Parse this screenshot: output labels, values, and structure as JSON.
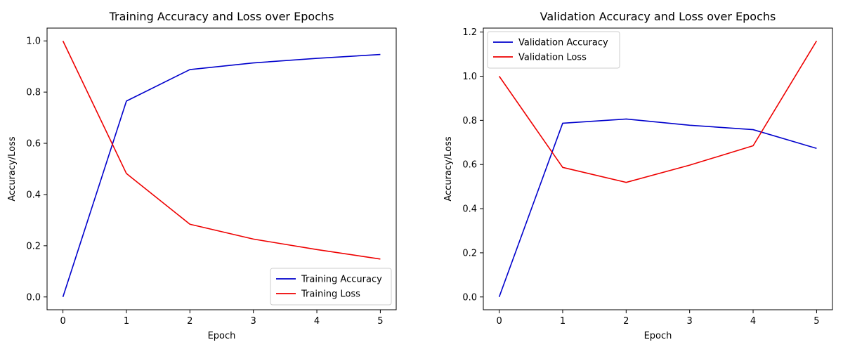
{
  "chart_data": [
    {
      "type": "line",
      "title": "Training Accuracy and Loss over Epochs",
      "xlabel": "Epoch",
      "ylabel": "Accuracy/Loss",
      "x": [
        0,
        1,
        2,
        3,
        4,
        5
      ],
      "xlim": [
        -0.25,
        5.25
      ],
      "ylim": [
        -0.05,
        1.05
      ],
      "xticks": [
        0,
        1,
        2,
        3,
        4,
        5
      ],
      "yticks": [
        0.0,
        0.2,
        0.4,
        0.6,
        0.8,
        1.0
      ],
      "ytick_labels": [
        "0.0",
        "0.2",
        "0.4",
        "0.6",
        "0.8",
        "1.0"
      ],
      "grid": false,
      "legend_position": "lower-right",
      "series": [
        {
          "name": "Training Accuracy",
          "color": "#0000cc",
          "values": [
            0.0,
            0.765,
            0.888,
            0.914,
            0.932,
            0.947
          ]
        },
        {
          "name": "Training Loss",
          "color": "#ee0000",
          "values": [
            1.0,
            0.482,
            0.284,
            0.226,
            0.185,
            0.148
          ]
        }
      ]
    },
    {
      "type": "line",
      "title": "Validation Accuracy and Loss over Epochs",
      "xlabel": "Epoch",
      "ylabel": "Accuracy/Loss",
      "x": [
        0,
        1,
        2,
        3,
        4,
        5
      ],
      "xlim": [
        -0.25,
        5.25
      ],
      "ylim": [
        -0.058,
        1.218
      ],
      "xticks": [
        0,
        1,
        2,
        3,
        4,
        5
      ],
      "yticks": [
        0.0,
        0.2,
        0.4,
        0.6,
        0.8,
        1.0,
        1.2
      ],
      "ytick_labels": [
        "0.0",
        "0.2",
        "0.4",
        "0.6",
        "0.8",
        "1.0",
        "1.2"
      ],
      "grid": false,
      "legend_position": "upper-left",
      "series": [
        {
          "name": "Validation Accuracy",
          "color": "#0000cc",
          "values": [
            0.0,
            0.787,
            0.806,
            0.778,
            0.758,
            0.673
          ]
        },
        {
          "name": "Validation Loss",
          "color": "#ee0000",
          "values": [
            1.0,
            0.587,
            0.519,
            0.597,
            0.685,
            1.16
          ]
        }
      ]
    }
  ]
}
